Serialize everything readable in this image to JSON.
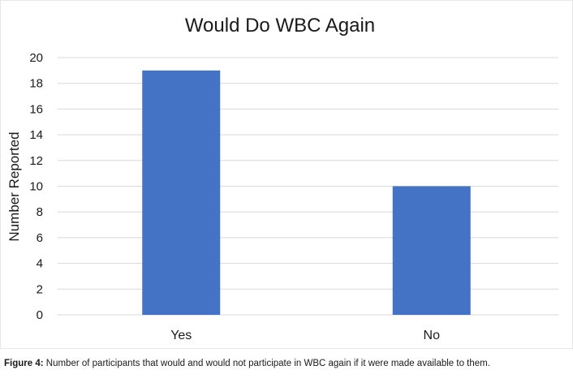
{
  "chart_data": {
    "type": "bar",
    "title": "Would Do WBC Again",
    "xlabel": "",
    "ylabel": "Number Reported",
    "categories": [
      "Yes",
      "No"
    ],
    "values": [
      19,
      10
    ],
    "ylim": [
      0,
      20
    ],
    "yticks": [
      "0",
      "2",
      "4",
      "6",
      "8",
      "10",
      "12",
      "14",
      "16",
      "18",
      "20"
    ],
    "grid": true,
    "legend": "none",
    "bar_color": "#4472C4"
  },
  "caption": {
    "label": "Figure 4:",
    "text": "Number of participants that would and would not participate in WBC again if it were made available to them."
  }
}
